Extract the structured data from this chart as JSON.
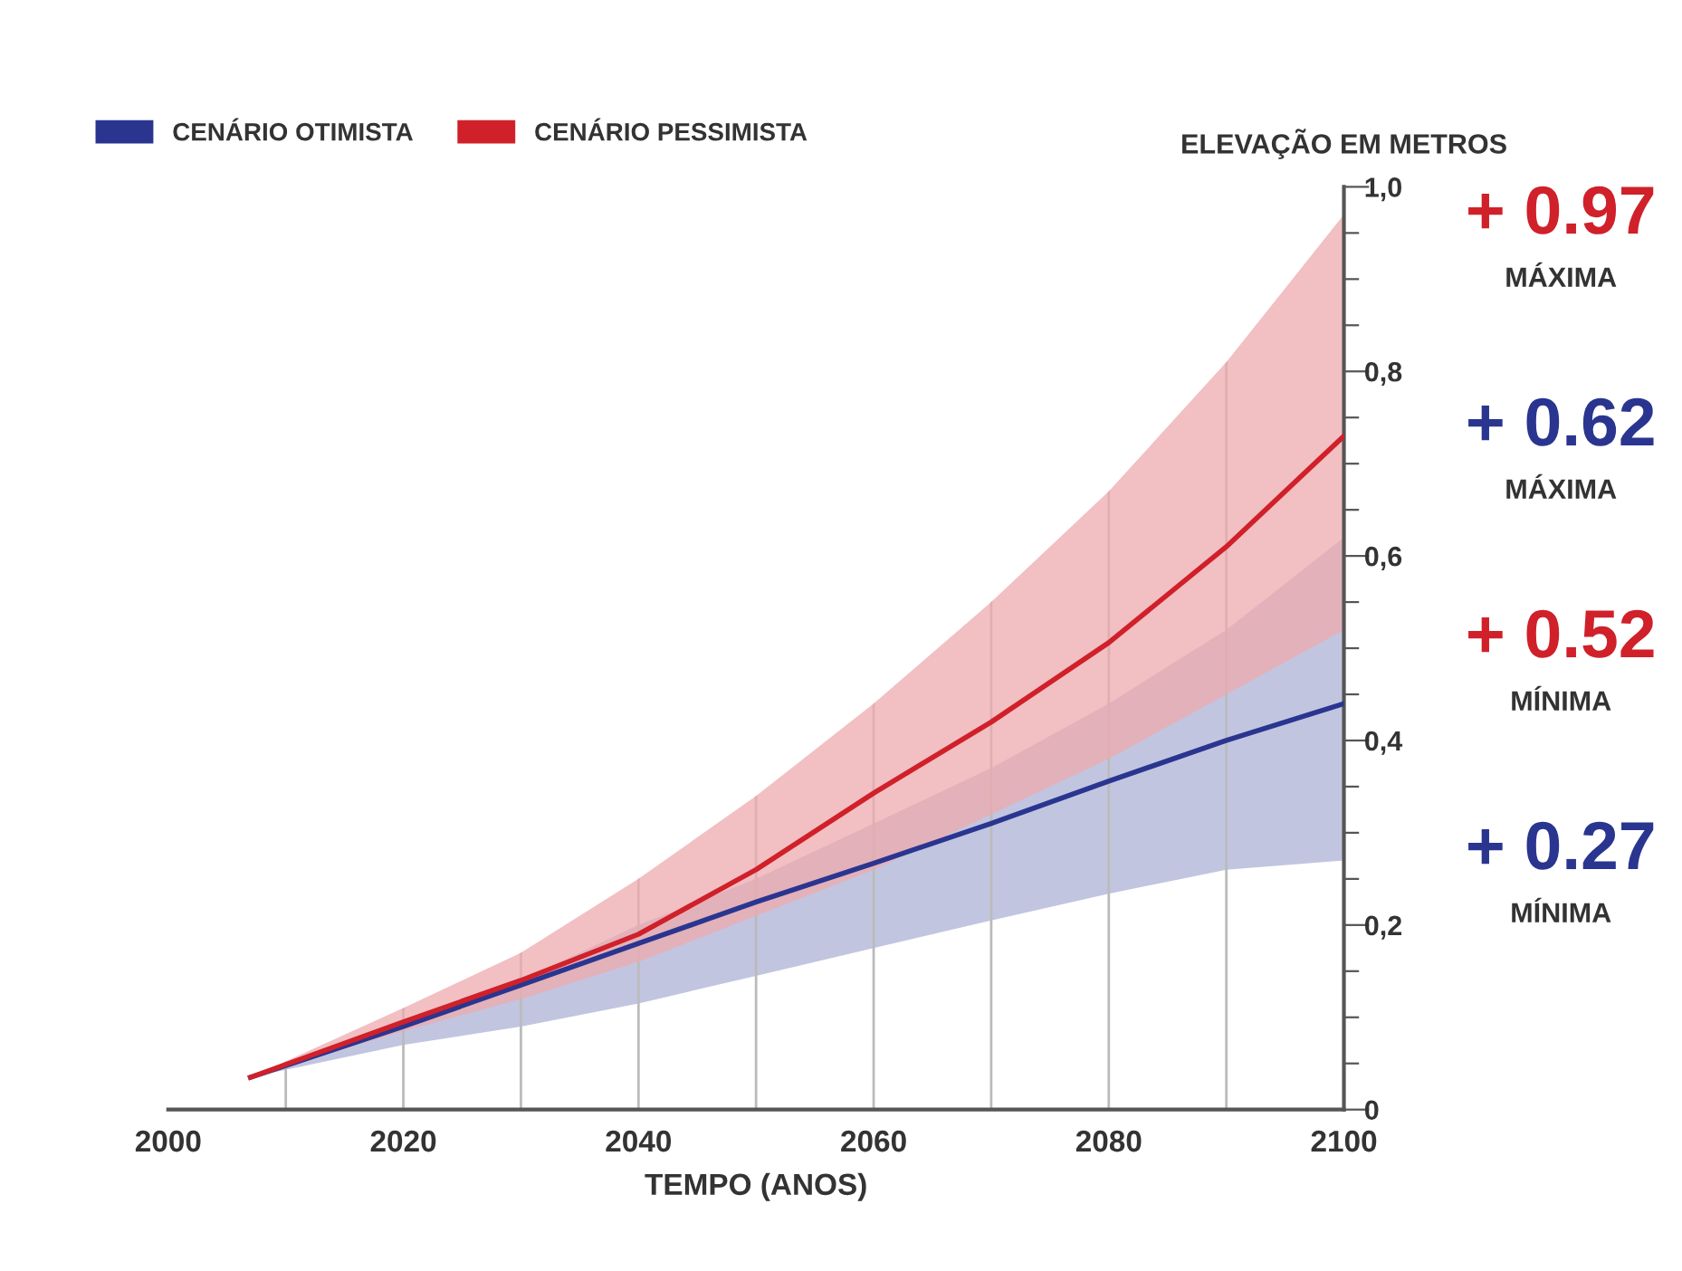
{
  "chart_data": {
    "type": "line",
    "xlabel": "TEMPO (ANOS)",
    "ylabel": "ELEVAÇÃO EM METROS",
    "x": [
      2007,
      2020,
      2030,
      2040,
      2050,
      2060,
      2070,
      2080,
      2090,
      2100
    ],
    "series": [
      {
        "name": "CENÁRIO OTIMISTA",
        "color": "#2a3590",
        "values": [
          0.035,
          0.09,
          0.135,
          0.18,
          0.225,
          0.267,
          0.31,
          0.356,
          0.4,
          0.44
        ],
        "lower": [
          0.035,
          0.07,
          0.09,
          0.115,
          0.145,
          0.175,
          0.205,
          0.234,
          0.26,
          0.27
        ],
        "upper": [
          0.035,
          0.095,
          0.14,
          0.2,
          0.25,
          0.31,
          0.37,
          0.44,
          0.52,
          0.62
        ]
      },
      {
        "name": "CENÁRIO PESSIMISTA",
        "color": "#d0202a",
        "values": [
          0.035,
          0.095,
          0.14,
          0.19,
          0.26,
          0.343,
          0.42,
          0.506,
          0.61,
          0.73
        ],
        "lower": [
          0.035,
          0.085,
          0.12,
          0.16,
          0.21,
          0.26,
          0.32,
          0.38,
          0.45,
          0.52
        ],
        "upper": [
          0.035,
          0.11,
          0.17,
          0.25,
          0.34,
          0.44,
          0.55,
          0.67,
          0.81,
          0.97
        ]
      }
    ],
    "xlim": [
      2000,
      2100
    ],
    "xticks": [
      2000,
      {
        "value": 2010,
        "label": null
      },
      2020,
      {
        "value": 2030,
        "label": null
      },
      2040,
      {
        "value": 2050,
        "label": null
      },
      2060,
      {
        "value": 2070,
        "label": null
      },
      2080,
      {
        "value": 2090,
        "label": null
      },
      2100
    ],
    "ylim": [
      0,
      1.0
    ],
    "yticks": [
      0,
      {
        "value": 0.05,
        "label": null
      },
      {
        "value": 0.1,
        "label": null
      },
      {
        "value": 0.15,
        "label": null
      },
      {
        "value": 0.2,
        "label": "0,2"
      },
      {
        "value": 0.25,
        "label": null
      },
      {
        "value": 0.3,
        "label": null
      },
      {
        "value": 0.35,
        "label": null
      },
      {
        "value": 0.4,
        "label": "0,4"
      },
      {
        "value": 0.45,
        "label": null
      },
      {
        "value": 0.5,
        "label": null
      },
      {
        "value": 0.55,
        "label": null
      },
      {
        "value": 0.6,
        "label": "0,6"
      },
      {
        "value": 0.65,
        "label": null
      },
      {
        "value": 0.7,
        "label": null
      },
      {
        "value": 0.75,
        "label": null
      },
      {
        "value": 0.8,
        "label": "0,8"
      },
      {
        "value": 0.85,
        "label": null
      },
      {
        "value": 0.9,
        "label": null
      },
      {
        "value": 0.95,
        "label": null
      },
      {
        "value": 1.0,
        "label": "1,0"
      }
    ],
    "grid": "x",
    "legend": "top left",
    "marker": "none",
    "line_style": "solid",
    "annotations": [
      "+ 0.97",
      "MÁXIMA",
      "+ 0.62",
      "MÁXIMA",
      "+ 0.52",
      "MÍNIMA",
      "+ 0.27",
      "MÍNIMA"
    ]
  }
}
